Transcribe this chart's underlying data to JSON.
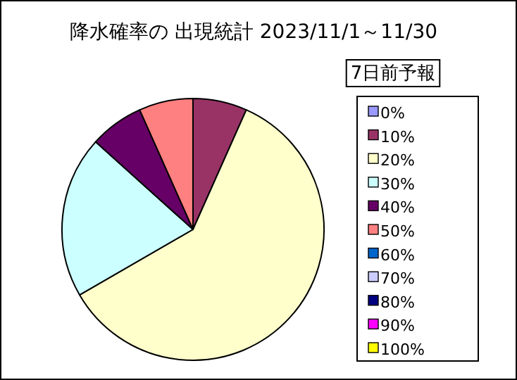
{
  "chart_data": {
    "type": "pie",
    "title": "降水確率の 出現統計  2023/11/1～11/30",
    "legend_title": "7日前予報",
    "categories": [
      "0%",
      "10%",
      "20%",
      "30%",
      "40%",
      "50%",
      "60%",
      "70%",
      "80%",
      "90%",
      "100%"
    ],
    "values": [
      0,
      6.67,
      60,
      20,
      6.67,
      6.67,
      0,
      0,
      0,
      0,
      0
    ],
    "colors": [
      "#9999ff",
      "#993366",
      "#ffffcc",
      "#ccffff",
      "#660066",
      "#ff8080",
      "#0066cc",
      "#ccccff",
      "#000080",
      "#ff00ff",
      "#ffff00"
    ],
    "legend": "right"
  }
}
